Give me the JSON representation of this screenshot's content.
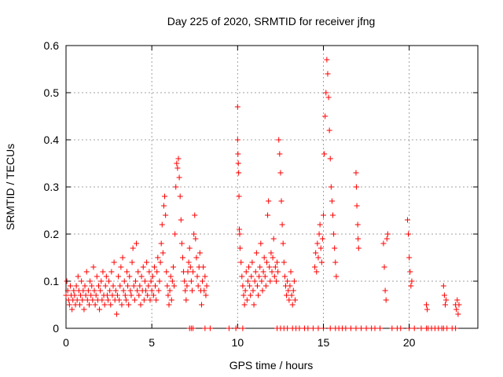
{
  "chart_data": {
    "type": "scatter",
    "title": "Day 225 of 2020, SRMTID for receiver jfng",
    "xlabel": "GPS time / hours",
    "ylabel": "SRMTID / TECUs",
    "xlim": [
      0,
      24
    ],
    "ylim": [
      0,
      0.6
    ],
    "xticks": [
      0,
      5,
      10,
      15,
      20
    ],
    "yticks": [
      0,
      0.1,
      0.2,
      0.3,
      0.4,
      0.5,
      0.6
    ],
    "grid": true,
    "marker": "+",
    "color": "#ff0000",
    "series": [
      {
        "name": "SRMTID",
        "points": [
          [
            0.0,
            0.07
          ],
          [
            0.05,
            0.1
          ],
          [
            0.1,
            0.08
          ],
          [
            0.15,
            0.06
          ],
          [
            0.2,
            0.05
          ],
          [
            0.25,
            0.09
          ],
          [
            0.3,
            0.07
          ],
          [
            0.35,
            0.04
          ],
          [
            0.4,
            0.06
          ],
          [
            0.45,
            0.08
          ],
          [
            0.5,
            0.07
          ],
          [
            0.55,
            0.05
          ],
          [
            0.6,
            0.09
          ],
          [
            0.65,
            0.06
          ],
          [
            0.7,
            0.11
          ],
          [
            0.75,
            0.08
          ],
          [
            0.8,
            0.05
          ],
          [
            0.85,
            0.07
          ],
          [
            0.9,
            0.1
          ],
          [
            0.95,
            0.06
          ],
          [
            1.0,
            0.08
          ],
          [
            1.05,
            0.04
          ],
          [
            1.1,
            0.09
          ],
          [
            1.15,
            0.07
          ],
          [
            1.2,
            0.12
          ],
          [
            1.25,
            0.06
          ],
          [
            1.3,
            0.08
          ],
          [
            1.35,
            0.05
          ],
          [
            1.4,
            0.1
          ],
          [
            1.45,
            0.07
          ],
          [
            1.5,
            0.09
          ],
          [
            1.55,
            0.06
          ],
          [
            1.6,
            0.13
          ],
          [
            1.65,
            0.08
          ],
          [
            1.7,
            0.05
          ],
          [
            1.75,
            0.07
          ],
          [
            1.8,
            0.11
          ],
          [
            1.85,
            0.06
          ],
          [
            1.9,
            0.09
          ],
          [
            1.95,
            0.04
          ],
          [
            2.0,
            0.08
          ],
          [
            2.05,
            0.1
          ],
          [
            2.1,
            0.06
          ],
          [
            2.15,
            0.12
          ],
          [
            2.2,
            0.07
          ],
          [
            2.25,
            0.05
          ],
          [
            2.3,
            0.09
          ],
          [
            2.35,
            0.11
          ],
          [
            2.4,
            0.07
          ],
          [
            2.45,
            0.06
          ],
          [
            2.5,
            0.1
          ],
          [
            2.55,
            0.08
          ],
          [
            2.6,
            0.05
          ],
          [
            2.65,
            0.12
          ],
          [
            2.7,
            0.07
          ],
          [
            2.75,
            0.09
          ],
          [
            2.8,
            0.14
          ],
          [
            2.85,
            0.06
          ],
          [
            2.9,
            0.08
          ],
          [
            2.95,
            0.03
          ],
          [
            3.0,
            0.07
          ],
          [
            3.05,
            0.11
          ],
          [
            3.1,
            0.06
          ],
          [
            3.15,
            0.09
          ],
          [
            3.2,
            0.13
          ],
          [
            3.25,
            0.05
          ],
          [
            3.3,
            0.15
          ],
          [
            3.35,
            0.08
          ],
          [
            3.4,
            0.1
          ],
          [
            3.45,
            0.07
          ],
          [
            3.5,
            0.06
          ],
          [
            3.55,
            0.12
          ],
          [
            3.6,
            0.09
          ],
          [
            3.65,
            0.05
          ],
          [
            3.7,
            0.11
          ],
          [
            3.75,
            0.08
          ],
          [
            3.8,
            0.07
          ],
          [
            3.85,
            0.14
          ],
          [
            3.9,
            0.17
          ],
          [
            3.95,
            0.09
          ],
          [
            4.0,
            0.06
          ],
          [
            4.05,
            0.1
          ],
          [
            4.1,
            0.18
          ],
          [
            4.15,
            0.08
          ],
          [
            4.2,
            0.12
          ],
          [
            4.25,
            0.07
          ],
          [
            4.3,
            0.09
          ],
          [
            4.35,
            0.05
          ],
          [
            4.4,
            0.11
          ],
          [
            4.45,
            0.08
          ],
          [
            4.5,
            0.13
          ],
          [
            4.55,
            0.06
          ],
          [
            4.6,
            0.1
          ],
          [
            4.65,
            0.08
          ],
          [
            4.7,
            0.14
          ],
          [
            4.75,
            0.07
          ],
          [
            4.8,
            0.09
          ],
          [
            4.85,
            0.12
          ],
          [
            4.9,
            0.06
          ],
          [
            4.95,
            0.1
          ],
          [
            5.0,
            0.08
          ],
          [
            5.05,
            0.11
          ],
          [
            5.1,
            0.07
          ],
          [
            5.15,
            0.13
          ],
          [
            5.2,
            0.09
          ],
          [
            5.25,
            0.06
          ],
          [
            5.3,
            0.12
          ],
          [
            5.35,
            0.15
          ],
          [
            5.4,
            0.08
          ],
          [
            5.45,
            0.1
          ],
          [
            5.5,
            0.14
          ],
          [
            5.55,
            0.18
          ],
          [
            5.6,
            0.22
          ],
          [
            5.65,
            0.16
          ],
          [
            5.7,
            0.26
          ],
          [
            5.75,
            0.28
          ],
          [
            5.8,
            0.24
          ],
          [
            5.85,
            0.12
          ],
          [
            5.9,
            0.09
          ],
          [
            5.95,
            0.07
          ],
          [
            6.0,
            0.05
          ],
          [
            6.05,
            0.08
          ],
          [
            6.1,
            0.11
          ],
          [
            6.15,
            0.06
          ],
          [
            6.2,
            0.1
          ],
          [
            6.25,
            0.13
          ],
          [
            6.3,
            0.09
          ],
          [
            6.35,
            0.2
          ],
          [
            6.4,
            0.3
          ],
          [
            6.45,
            0.35
          ],
          [
            6.5,
            0.34
          ],
          [
            6.55,
            0.36
          ],
          [
            6.6,
            0.32
          ],
          [
            6.65,
            0.28
          ],
          [
            6.7,
            0.23
          ],
          [
            6.75,
            0.18
          ],
          [
            6.8,
            0.15
          ],
          [
            6.85,
            0.12
          ],
          [
            6.9,
            0.1
          ],
          [
            6.95,
            0.08
          ],
          [
            7.0,
            0.06
          ],
          [
            7.05,
            0.09
          ],
          [
            7.1,
            0.12
          ],
          [
            7.15,
            0.14
          ],
          [
            7.2,
            0.17
          ],
          [
            7.25,
            0.13
          ],
          [
            7.3,
            0.1
          ],
          [
            7.35,
            0.08
          ],
          [
            7.4,
            0.12
          ],
          [
            7.45,
            0.2
          ],
          [
            7.5,
            0.24
          ],
          [
            7.55,
            0.19
          ],
          [
            7.6,
            0.15
          ],
          [
            7.65,
            0.11
          ],
          [
            7.7,
            0.09
          ],
          [
            7.75,
            0.13
          ],
          [
            7.8,
            0.16
          ],
          [
            7.85,
            0.08
          ],
          [
            7.9,
            0.05
          ],
          [
            7.95,
            0.1
          ],
          [
            8.0,
            0.13
          ],
          [
            8.05,
            0.08
          ],
          [
            8.1,
            0.11
          ],
          [
            8.15,
            0.07
          ],
          [
            8.2,
            0.09
          ],
          [
            10.0,
            0.47
          ],
          [
            10.0,
            0.4
          ],
          [
            10.02,
            0.37
          ],
          [
            10.04,
            0.35
          ],
          [
            10.06,
            0.33
          ],
          [
            10.08,
            0.28
          ],
          [
            10.1,
            0.21
          ],
          [
            10.12,
            0.2
          ],
          [
            10.14,
            0.17
          ],
          [
            10.2,
            0.14
          ],
          [
            10.25,
            0.11
          ],
          [
            10.3,
            0.09
          ],
          [
            10.35,
            0.07
          ],
          [
            10.4,
            0.05
          ],
          [
            10.45,
            0.08
          ],
          [
            10.5,
            0.12
          ],
          [
            10.55,
            0.06
          ],
          [
            10.6,
            0.1
          ],
          [
            10.65,
            0.13
          ],
          [
            10.7,
            0.09
          ],
          [
            10.75,
            0.07
          ],
          [
            10.8,
            0.11
          ],
          [
            10.85,
            0.14
          ],
          [
            10.9,
            0.08
          ],
          [
            10.95,
            0.05
          ],
          [
            11.0,
            0.1
          ],
          [
            11.05,
            0.12
          ],
          [
            11.1,
            0.16
          ],
          [
            11.15,
            0.09
          ],
          [
            11.2,
            0.07
          ],
          [
            11.25,
            0.11
          ],
          [
            11.3,
            0.13
          ],
          [
            11.35,
            0.18
          ],
          [
            11.4,
            0.1
          ],
          [
            11.45,
            0.08
          ],
          [
            11.5,
            0.12
          ],
          [
            11.55,
            0.15
          ],
          [
            11.6,
            0.11
          ],
          [
            11.65,
            0.09
          ],
          [
            11.7,
            0.14
          ],
          [
            11.75,
            0.24
          ],
          [
            11.8,
            0.27
          ],
          [
            11.85,
            0.13
          ],
          [
            11.9,
            0.1
          ],
          [
            11.95,
            0.16
          ],
          [
            12.0,
            0.12
          ],
          [
            12.05,
            0.15
          ],
          [
            12.1,
            0.19
          ],
          [
            12.15,
            0.11
          ],
          [
            12.2,
            0.13
          ],
          [
            12.25,
            0.1
          ],
          [
            12.3,
            0.14
          ],
          [
            12.35,
            0.12
          ],
          [
            12.4,
            0.4
          ],
          [
            12.45,
            0.37
          ],
          [
            12.5,
            0.33
          ],
          [
            12.55,
            0.27
          ],
          [
            12.6,
            0.22
          ],
          [
            12.65,
            0.18
          ],
          [
            12.7,
            0.14
          ],
          [
            12.75,
            0.11
          ],
          [
            12.8,
            0.09
          ],
          [
            12.85,
            0.07
          ],
          [
            12.9,
            0.1
          ],
          [
            12.95,
            0.08
          ],
          [
            13.0,
            0.06
          ],
          [
            13.05,
            0.09
          ],
          [
            13.1,
            0.12
          ],
          [
            13.15,
            0.07
          ],
          [
            13.2,
            0.05
          ],
          [
            13.25,
            0.08
          ],
          [
            13.3,
            0.1
          ],
          [
            13.35,
            0.06
          ],
          [
            14.5,
            0.13
          ],
          [
            14.55,
            0.16
          ],
          [
            14.6,
            0.12
          ],
          [
            14.65,
            0.18
          ],
          [
            14.7,
            0.15
          ],
          [
            14.75,
            0.2
          ],
          [
            14.8,
            0.22
          ],
          [
            14.85,
            0.17
          ],
          [
            14.9,
            0.14
          ],
          [
            14.95,
            0.19
          ],
          [
            15.0,
            0.24
          ],
          [
            15.05,
            0.37
          ],
          [
            15.1,
            0.45
          ],
          [
            15.15,
            0.5
          ],
          [
            15.2,
            0.57
          ],
          [
            15.25,
            0.54
          ],
          [
            15.3,
            0.49
          ],
          [
            15.35,
            0.42
          ],
          [
            15.4,
            0.36
          ],
          [
            15.45,
            0.3
          ],
          [
            15.5,
            0.27
          ],
          [
            15.55,
            0.24
          ],
          [
            15.6,
            0.2
          ],
          [
            15.65,
            0.17
          ],
          [
            15.7,
            0.14
          ],
          [
            15.75,
            0.11
          ],
          [
            16.9,
            0.33
          ],
          [
            16.92,
            0.3
          ],
          [
            16.95,
            0.26
          ],
          [
            17.0,
            0.22
          ],
          [
            17.02,
            0.19
          ],
          [
            17.05,
            0.17
          ],
          [
            18.5,
            0.18
          ],
          [
            18.55,
            0.13
          ],
          [
            18.6,
            0.08
          ],
          [
            18.65,
            0.06
          ],
          [
            18.7,
            0.19
          ],
          [
            18.75,
            0.2
          ],
          [
            19.9,
            0.23
          ],
          [
            19.95,
            0.2
          ],
          [
            20.0,
            0.15
          ],
          [
            20.05,
            0.12
          ],
          [
            20.1,
            0.09
          ],
          [
            20.15,
            0.1
          ],
          [
            21.0,
            0.05
          ],
          [
            21.05,
            0.04
          ],
          [
            22.0,
            0.09
          ],
          [
            22.05,
            0.07
          ],
          [
            22.1,
            0.05
          ],
          [
            22.15,
            0.06
          ],
          [
            22.7,
            0.05
          ],
          [
            22.75,
            0.04
          ],
          [
            22.8,
            0.06
          ],
          [
            22.85,
            0.03
          ],
          [
            22.9,
            0.05
          ]
        ]
      }
    ],
    "zero_points_x": [
      7.2,
      7.3,
      7.4,
      8.1,
      8.4,
      9.5,
      9.9,
      10.3,
      12.3,
      12.5,
      12.7,
      12.9,
      13.2,
      13.4,
      13.6,
      13.9,
      14.1,
      14.4,
      14.7,
      15.0,
      15.4,
      15.7,
      15.9,
      16.1,
      16.3,
      16.6,
      16.9,
      17.2,
      17.5,
      17.8,
      18.0,
      18.3,
      19.0,
      19.3,
      19.5,
      20.0,
      20.3,
      20.7,
      21.0,
      21.1,
      21.3,
      21.5,
      21.7,
      21.9,
      22.0,
      22.2,
      22.5,
      22.7
    ]
  }
}
